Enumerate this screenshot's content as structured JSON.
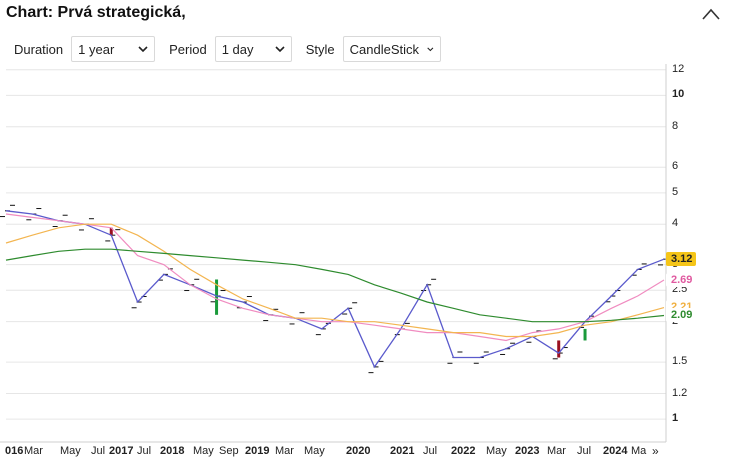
{
  "header": {
    "title": "Chart: Prvá strategická,"
  },
  "controls": {
    "duration_label": "Duration",
    "duration_value": "1 year",
    "period_label": "Period",
    "period_value": "1 day",
    "style_label": "Style",
    "style_value": "CandleStick"
  },
  "y_axis": {
    "scale": "log",
    "ticks": [
      "12",
      "10",
      "8",
      "6",
      "5",
      "4",
      "3",
      "2.5",
      "2",
      "1.5",
      "1.2",
      "1"
    ]
  },
  "x_axis": {
    "labels": [
      "016",
      "Mar",
      "May",
      "Jul",
      "2017",
      "Jul",
      "2018",
      "May",
      "Sep",
      "2019",
      "Mar",
      "May",
      "2020",
      "2021",
      "Jul",
      "2022",
      "May",
      "2023",
      "Mar",
      "Jul",
      "2024",
      "Ma"
    ],
    "next_label": "»"
  },
  "price_badges": [
    {
      "value": "3.12",
      "color": "#f5c518",
      "text_color": "#222222"
    },
    {
      "value": "2.69",
      "color": "#ffffff",
      "text_color": "#e05aa0"
    },
    {
      "value": "2.21",
      "color": "#ffffff",
      "text_color": "#f0b040"
    },
    {
      "value": "2.09",
      "color": "#ffffff",
      "text_color": "#2e8b2e"
    }
  ],
  "colors": {
    "price_line": "#5a5acc",
    "ma_short": "#f08cc0",
    "ma_mid": "#f3b550",
    "ma_long": "#2e8b2e",
    "candle_up": "#1a9a3a",
    "candle_down": "#9a1020",
    "grid": "#e6e6e6"
  },
  "chart_data": {
    "type": "line",
    "y_scale": "log",
    "ylim": [
      0.85,
      12.5
    ],
    "series": [
      {
        "values": [
          4.4,
          4.3,
          4.1,
          4.0,
          3.7,
          2.3,
          2.8,
          2.6,
          2.4,
          2.3,
          2.1,
          2.05,
          1.9,
          2.2,
          1.45,
          1.9,
          2.6,
          1.55,
          1.55,
          1.65,
          1.8,
          1.6,
          2.0,
          2.4,
          2.9,
          3.12
        ]
      },
      {
        "values": [
          4.3,
          4.2,
          4.1,
          4.0,
          3.9,
          3.2,
          3.0,
          2.6,
          2.35,
          2.2,
          2.1,
          2.05,
          2.0,
          2.0,
          1.95,
          1.9,
          1.85,
          1.85,
          1.8,
          1.75,
          1.85,
          1.9,
          2.0,
          2.2,
          2.4,
          2.69
        ]
      },
      {
        "values": [
          3.5,
          3.7,
          3.9,
          4.0,
          4.0,
          3.7,
          3.3,
          2.9,
          2.6,
          2.35,
          2.2,
          2.05,
          2.05,
          2.0,
          2.0,
          1.95,
          1.9,
          1.85,
          1.85,
          1.8,
          1.8,
          1.85,
          1.95,
          2.0,
          2.1,
          2.21
        ]
      },
      {
        "values": [
          3.1,
          3.2,
          3.3,
          3.35,
          3.35,
          3.3,
          3.25,
          3.2,
          3.15,
          3.1,
          3.05,
          3.0,
          2.9,
          2.8,
          2.6,
          2.45,
          2.3,
          2.2,
          2.1,
          2.05,
          2.0,
          2.0,
          2.0,
          2.02,
          2.05,
          2.09
        ]
      }
    ]
  }
}
